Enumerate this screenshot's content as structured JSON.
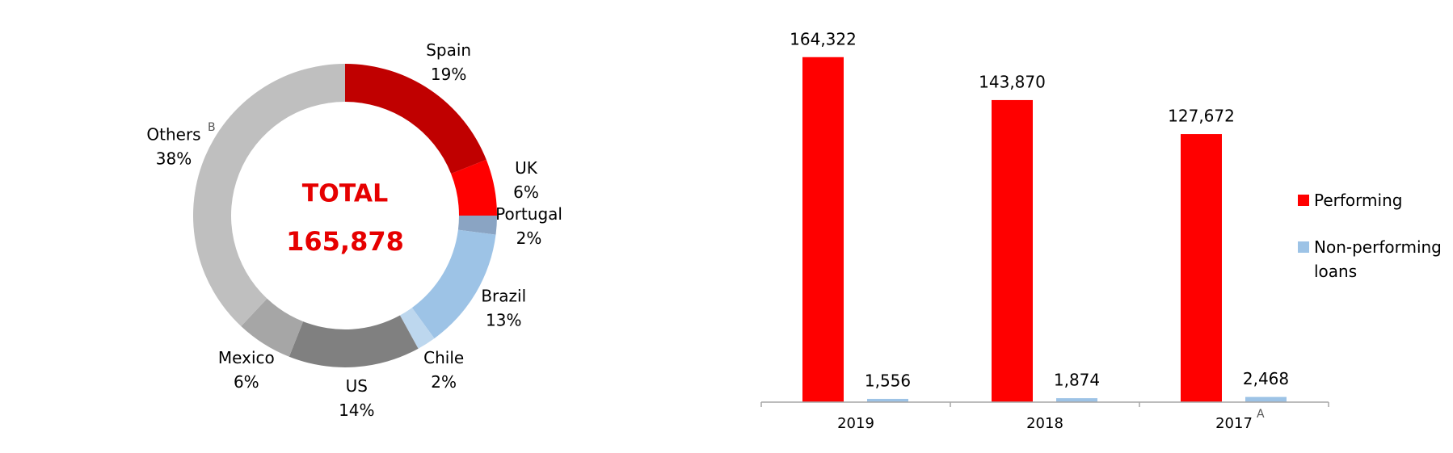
{
  "chart_data": [
    {
      "type": "donut",
      "center_title": "TOTAL",
      "center_value": "165,878",
      "categories": [
        "Spain",
        "UK",
        "Portugal",
        "Brazil",
        "Chile",
        "US",
        "Mexico",
        "Others"
      ],
      "values": [
        19,
        6,
        2,
        13,
        2,
        14,
        6,
        38
      ],
      "value_labels": [
        "19%",
        "6%",
        "2%",
        "13%",
        "2%",
        "14%",
        "6%",
        "38%"
      ],
      "notes": [
        null,
        null,
        null,
        null,
        null,
        null,
        null,
        "B"
      ],
      "colors": [
        "#c00000",
        "#ff0000",
        "#8aa4c3",
        "#9dc3e6",
        "#bdd7ee",
        "#808080",
        "#a6a6a6",
        "#bfbfbf"
      ]
    },
    {
      "type": "bar",
      "categories": [
        "2019",
        "2018",
        "2017"
      ],
      "notes": [
        null,
        null,
        "A"
      ],
      "series": [
        {
          "name": "Performing",
          "color": "#ff0000",
          "values": [
            164322,
            143870,
            127672
          ],
          "value_labels": [
            "164,322",
            "143,870",
            "127,672"
          ]
        },
        {
          "name": "Non-performing loans",
          "color": "#9dc3e6",
          "values": [
            1556,
            1874,
            2468
          ],
          "value_labels": [
            "1,556",
            "1,874",
            "2,468"
          ]
        }
      ],
      "ylim": [
        0,
        180000
      ],
      "legend": "right"
    }
  ]
}
